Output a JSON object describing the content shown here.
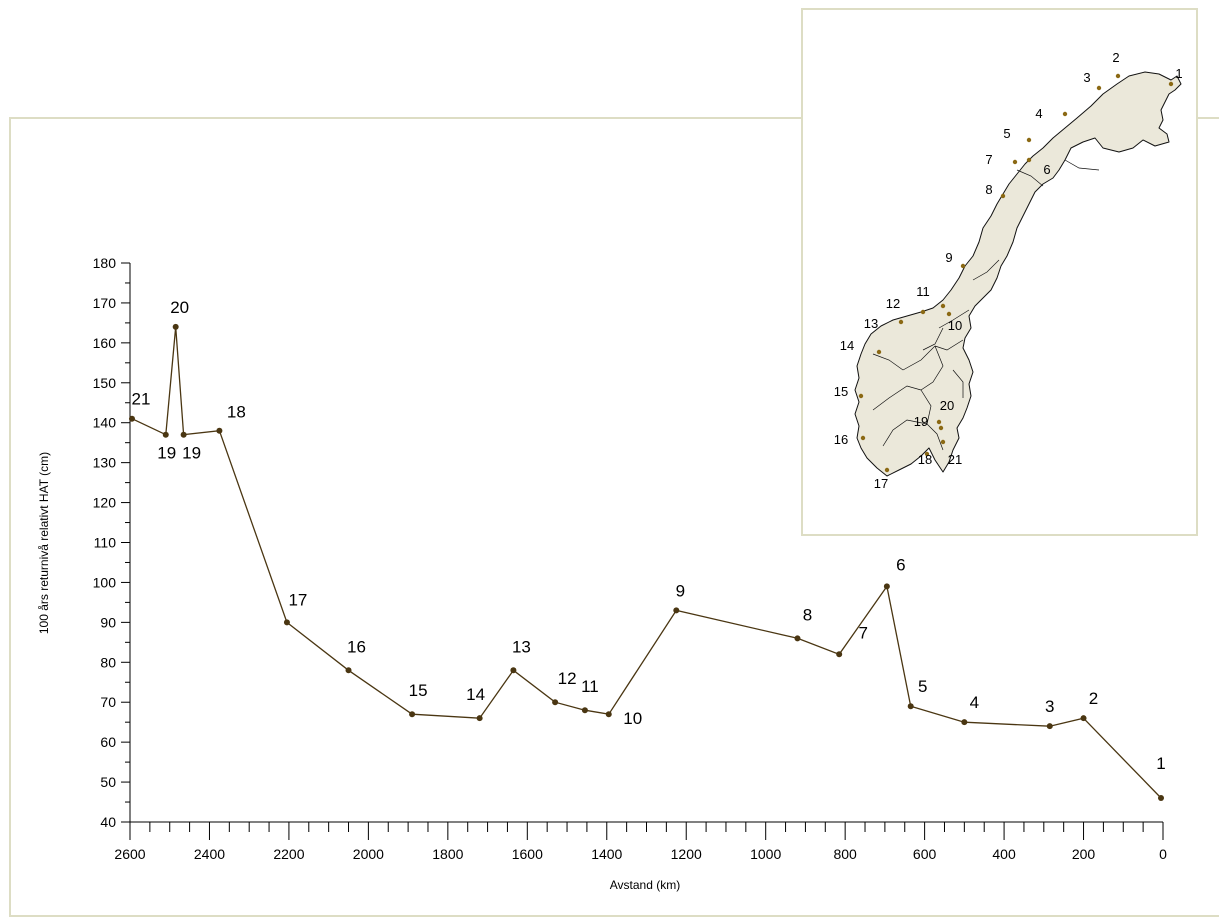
{
  "chart_data": {
    "type": "line",
    "xlabel": "Avstand (km)",
    "ylabel": "100 års returnivå relativt HAT (cm)",
    "xlim": [
      2600,
      0
    ],
    "ylim": [
      40,
      180
    ],
    "xticks": [
      2600,
      2400,
      2200,
      2000,
      1800,
      1600,
      1400,
      1200,
      1000,
      800,
      600,
      400,
      200,
      0
    ],
    "yticks": [
      40,
      50,
      60,
      70,
      80,
      90,
      100,
      110,
      120,
      130,
      140,
      150,
      160,
      170,
      180
    ],
    "grid": false,
    "line_color": "#4a3612",
    "points": [
      {
        "label": "21",
        "x": 2595,
        "y": 141
      },
      {
        "label": "19",
        "x": 2510,
        "y": 137
      },
      {
        "label": "20",
        "x": 2485,
        "y": 164
      },
      {
        "label": "19",
        "x": 2465,
        "y": 137
      },
      {
        "label": "18",
        "x": 2375,
        "y": 138
      },
      {
        "label": "17",
        "x": 2205,
        "y": 90
      },
      {
        "label": "16",
        "x": 2050,
        "y": 78
      },
      {
        "label": "15",
        "x": 1890,
        "y": 67
      },
      {
        "label": "14",
        "x": 1720,
        "y": 66
      },
      {
        "label": "13",
        "x": 1635,
        "y": 78
      },
      {
        "label": "12",
        "x": 1530,
        "y": 70
      },
      {
        "label": "11",
        "x": 1455,
        "y": 68
      },
      {
        "label": "10",
        "x": 1395,
        "y": 67
      },
      {
        "label": "9",
        "x": 1225,
        "y": 93
      },
      {
        "label": "8",
        "x": 920,
        "y": 86
      },
      {
        "label": "7",
        "x": 815,
        "y": 82
      },
      {
        "label": "6",
        "x": 695,
        "y": 99
      },
      {
        "label": "5",
        "x": 635,
        "y": 69
      },
      {
        "label": "4",
        "x": 500,
        "y": 65
      },
      {
        "label": "3",
        "x": 285,
        "y": 64
      },
      {
        "label": "2",
        "x": 200,
        "y": 66
      },
      {
        "label": "1",
        "x": 5,
        "y": 46
      }
    ]
  },
  "map": {
    "fill": "#ebe8da",
    "outline": "#111111",
    "station_color": "#8b6914",
    "stations": [
      {
        "label": "1"
      },
      {
        "label": "2"
      },
      {
        "label": "3"
      },
      {
        "label": "4"
      },
      {
        "label": "5"
      },
      {
        "label": "6"
      },
      {
        "label": "7"
      },
      {
        "label": "8"
      },
      {
        "label": "9"
      },
      {
        "label": "10"
      },
      {
        "label": "11"
      },
      {
        "label": "12"
      },
      {
        "label": "13"
      },
      {
        "label": "14"
      },
      {
        "label": "15"
      },
      {
        "label": "16"
      },
      {
        "label": "17"
      },
      {
        "label": "18"
      },
      {
        "label": "19"
      },
      {
        "label": "20"
      },
      {
        "label": "21"
      }
    ]
  }
}
